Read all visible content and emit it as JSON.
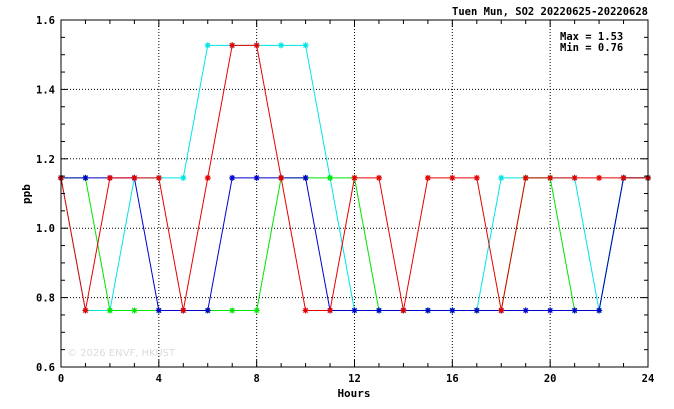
{
  "chart_data": {
    "type": "line",
    "title": "Tuen Mun, SO2 20220625-20220628",
    "xlabel": "Hours",
    "ylabel": "ppb",
    "xlim": [
      0,
      24
    ],
    "ylim": [
      0.6,
      1.6
    ],
    "x_ticks": [
      0,
      4,
      8,
      12,
      16,
      20,
      24
    ],
    "x_tick_labels": [
      "0",
      "4",
      "8",
      "12",
      "16",
      "20",
      "24"
    ],
    "y_ticks": [
      0.6,
      0.8,
      1.0,
      1.2,
      1.4,
      1.6
    ],
    "y_tick_labels": [
      "0.6",
      "0.8",
      "1.0",
      "1.2",
      "1.4",
      "1.6"
    ],
    "grid": "dotted",
    "annotations": [
      "Max = 1.53",
      "Min = 0.76"
    ],
    "watermark": "© 2026 ENVF, HKUST",
    "x": [
      0,
      1,
      2,
      3,
      4,
      5,
      6,
      7,
      8,
      9,
      10,
      11,
      12,
      13,
      14,
      15,
      16,
      17,
      18,
      19,
      20,
      21,
      22,
      23,
      24
    ],
    "series": [
      {
        "color": "#00e5e5",
        "values": [
          1.145,
          0.763,
          0.763,
          1.145,
          1.145,
          1.145,
          1.527,
          1.527,
          1.527,
          1.527,
          1.527,
          1.145,
          0.763,
          0.763,
          0.763,
          0.763,
          0.763,
          0.763,
          1.145,
          1.145,
          1.145,
          1.145,
          0.763,
          1.145,
          1.145
        ]
      },
      {
        "color": "#00e500",
        "values": [
          1.145,
          1.145,
          0.763,
          0.763,
          0.763,
          0.763,
          0.763,
          0.763,
          0.763,
          1.145,
          1.145,
          1.145,
          1.145,
          0.763,
          0.763,
          0.763,
          0.763,
          0.763,
          0.763,
          1.145,
          1.145,
          0.763,
          0.763,
          1.145,
          1.145
        ]
      },
      {
        "color": "#0000cc",
        "values": [
          1.145,
          1.145,
          1.145,
          1.145,
          0.763,
          0.763,
          0.763,
          1.145,
          1.145,
          1.145,
          1.145,
          0.763,
          0.763,
          0.763,
          0.763,
          0.763,
          0.763,
          0.763,
          0.763,
          0.763,
          0.763,
          0.763,
          0.763,
          1.145,
          1.145
        ]
      },
      {
        "color": "#e50000",
        "values": [
          1.145,
          0.763,
          1.145,
          1.145,
          1.145,
          0.763,
          1.145,
          1.527,
          1.527,
          1.145,
          0.763,
          0.763,
          1.145,
          1.145,
          0.763,
          1.145,
          1.145,
          1.145,
          0.763,
          1.145,
          1.145,
          1.145,
          1.145,
          1.145,
          1.145
        ]
      }
    ]
  }
}
